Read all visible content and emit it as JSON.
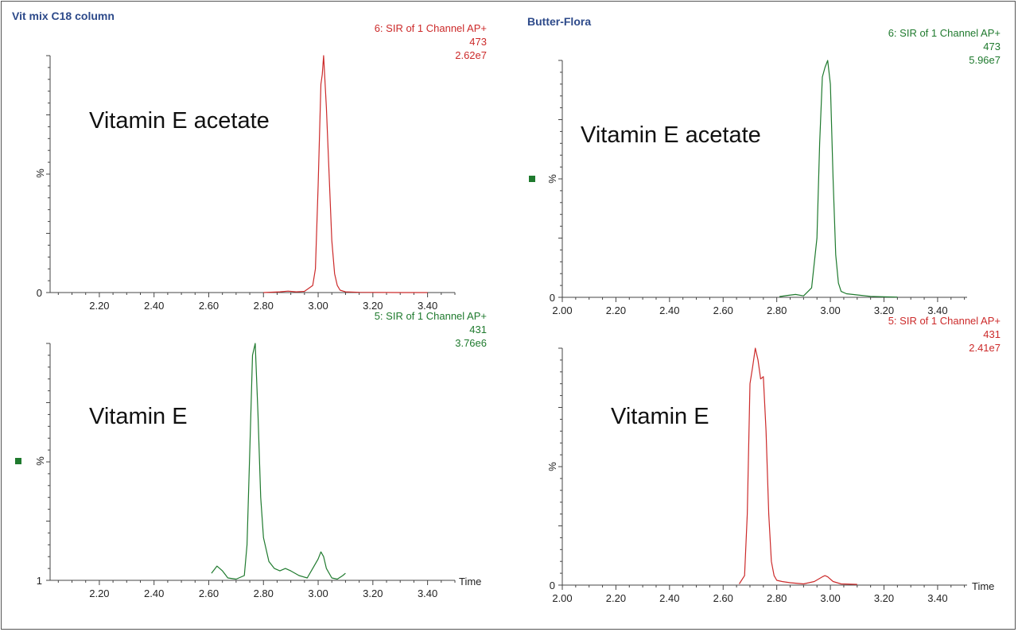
{
  "panels": {
    "left_title": "Vit mix C18 column",
    "right_title": "Butter-Flora"
  },
  "colors": {
    "red": "#cc2a2a",
    "green": "#1f7a2e",
    "title": "#2d4a8a",
    "axis": "#444444"
  },
  "chart_data": [
    {
      "id": "top-left",
      "type": "line",
      "xlabel": "",
      "ylabel": "%",
      "ytick_bottom": "0",
      "xlim": [
        2.02,
        3.5
      ],
      "ylim": [
        0,
        100
      ],
      "x_ticks": [
        "2.20",
        "2.40",
        "2.60",
        "2.80",
        "3.00",
        "3.20",
        "3.40"
      ],
      "info": [
        "6: SIR of 1 Channel AP+",
        "473",
        "2.62e7"
      ],
      "annotation": "Vitamin E acetate",
      "color": "red",
      "marker": false,
      "series": [
        {
          "x": [
            2.8,
            2.86,
            2.89,
            2.92,
            2.95,
            2.98,
            2.99,
            3.0,
            3.01,
            3.015,
            3.02,
            3.03,
            3.04,
            3.05,
            3.06,
            3.07,
            3.08,
            3.1,
            3.15,
            3.3,
            3.4
          ],
          "y": [
            0,
            0.3,
            0.6,
            0.3,
            0.5,
            3,
            10,
            45,
            88,
            92,
            100,
            78,
            50,
            22,
            8,
            3,
            1,
            0.3,
            0.1,
            0,
            0
          ]
        }
      ]
    },
    {
      "id": "bottom-left",
      "type": "line",
      "xlabel": "Time",
      "ylabel": "%",
      "ytick_bottom": "1",
      "xlim": [
        2.02,
        3.5
      ],
      "ylim": [
        0,
        100
      ],
      "x_ticks": [
        "2.20",
        "2.40",
        "2.60",
        "2.80",
        "3.00",
        "3.20",
        "3.40"
      ],
      "info": [
        "5: SIR of 1 Channel AP+",
        "431",
        "3.76e6"
      ],
      "annotation": "Vitamin E",
      "color": "green",
      "marker": true,
      "series": [
        {
          "x": [
            2.61,
            2.63,
            2.65,
            2.67,
            2.7,
            2.73,
            2.74,
            2.75,
            2.76,
            2.77,
            2.78,
            2.79,
            2.8,
            2.82,
            2.84,
            2.86,
            2.88,
            2.9,
            2.93,
            2.96,
            2.98,
            3.0,
            3.01,
            3.02,
            3.03,
            3.05,
            3.07,
            3.09,
            3.1
          ],
          "y": [
            3,
            6,
            4,
            1,
            0.5,
            2,
            15,
            55,
            95,
            100,
            70,
            35,
            18,
            8,
            5,
            4,
            5,
            4,
            2,
            1,
            5,
            9,
            12,
            10,
            5,
            1,
            0.5,
            2,
            3
          ]
        }
      ]
    },
    {
      "id": "top-right",
      "type": "line",
      "xlabel": "",
      "ylabel": "%",
      "ytick_bottom": "0",
      "xlim": [
        2.0,
        3.51
      ],
      "ylim": [
        0,
        100
      ],
      "x_ticks": [
        "2.00",
        "2.20",
        "2.40",
        "2.60",
        "2.80",
        "3.00",
        "3.20",
        "3.40"
      ],
      "info": [
        "6: SIR of 1 Channel AP+",
        "473",
        "5.96e7"
      ],
      "annotation": "Vitamin E acetate",
      "color": "green",
      "marker": true,
      "series": [
        {
          "x": [
            2.81,
            2.84,
            2.87,
            2.9,
            2.93,
            2.95,
            2.96,
            2.97,
            2.98,
            2.99,
            3.0,
            3.01,
            3.02,
            3.03,
            3.04,
            3.06,
            3.1,
            3.15,
            3.2,
            3.25
          ],
          "y": [
            0.3,
            0.8,
            1.2,
            0.6,
            4,
            25,
            65,
            93,
            97,
            100,
            90,
            50,
            18,
            6,
            2.5,
            1.5,
            1,
            0.4,
            0.2,
            0.1
          ]
        }
      ]
    },
    {
      "id": "bottom-right",
      "type": "line",
      "xlabel": "Time",
      "ylabel": "%",
      "ytick_bottom": "0",
      "xlim": [
        2.0,
        3.51
      ],
      "ylim": [
        0,
        100
      ],
      "x_ticks": [
        "2.00",
        "2.20",
        "2.40",
        "2.60",
        "2.80",
        "3.00",
        "3.20",
        "3.40"
      ],
      "info": [
        "5: SIR of 1 Channel AP+",
        "431",
        "2.41e7"
      ],
      "annotation": "Vitamin E",
      "color": "red",
      "marker": false,
      "series": [
        {
          "x": [
            2.66,
            2.68,
            2.69,
            2.7,
            2.71,
            2.72,
            2.73,
            2.74,
            2.75,
            2.76,
            2.77,
            2.78,
            2.79,
            2.8,
            2.82,
            2.85,
            2.9,
            2.94,
            2.97,
            2.98,
            2.99,
            3.01,
            3.04,
            3.1
          ],
          "y": [
            0.5,
            4,
            30,
            85,
            92,
            100,
            95,
            87,
            88,
            65,
            30,
            10,
            4,
            2,
            1.5,
            1,
            0.5,
            1.5,
            3.5,
            4,
            3.5,
            1.5,
            0.5,
            0.3
          ]
        }
      ]
    }
  ]
}
